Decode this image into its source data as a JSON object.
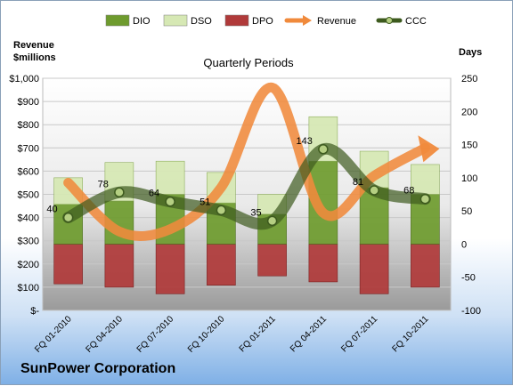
{
  "chart_data": {
    "type": "bar",
    "title": "Quarterly Periods",
    "company": "SunPower Corporation",
    "left_axis_label_line1": "Revenue",
    "left_axis_label_line2": "$millions",
    "right_axis_label": "Days",
    "left_axis": {
      "min": 0,
      "max": 1000,
      "step": 100,
      "tick_labels": [
        "$-",
        "$100",
        "$200",
        "$300",
        "$400",
        "$500",
        "$600",
        "$700",
        "$800",
        "$900",
        "$1,000"
      ]
    },
    "right_axis": {
      "min": -100,
      "max": 250,
      "step": 50,
      "tick_labels": [
        "-100",
        "-50",
        "0",
        "50",
        "100",
        "150",
        "200",
        "250"
      ]
    },
    "categories": [
      "FQ 01-2010",
      "FQ 04-2010",
      "FQ 07-2010",
      "FQ 10-2010",
      "FQ 01-2011",
      "FQ 04-2011",
      "FQ 07-2011",
      "FQ 10-2011"
    ],
    "series": [
      {
        "name": "DIO",
        "axis": "right",
        "values": [
          60,
          65,
          75,
          62,
          45,
          125,
          85,
          75
        ],
        "color": "#6e9b2e"
      },
      {
        "name": "DSO",
        "axis": "right",
        "values": [
          40,
          58,
          50,
          46,
          30,
          67,
          55,
          45
        ],
        "color": "#d6e8b4"
      },
      {
        "name": "DPO",
        "axis": "right",
        "values": [
          -60,
          -65,
          -75,
          -62,
          -48,
          -57,
          -75,
          -65
        ],
        "color": "#b03a3a"
      },
      {
        "name": "Revenue",
        "axis": "left",
        "values": [
          550,
          340,
          350,
          530,
          960,
          420,
          580,
          700
        ],
        "color": "#f08a3c"
      },
      {
        "name": "CCC",
        "axis": "right",
        "values": [
          40,
          78,
          64,
          51,
          35,
          143,
          81,
          68
        ],
        "color": "#3d5a1e"
      }
    ],
    "ccc_labels": [
      "40",
      "78",
      "64",
      "51",
      "35",
      "143",
      "81",
      "68"
    ],
    "grid": true,
    "legend": "top"
  }
}
